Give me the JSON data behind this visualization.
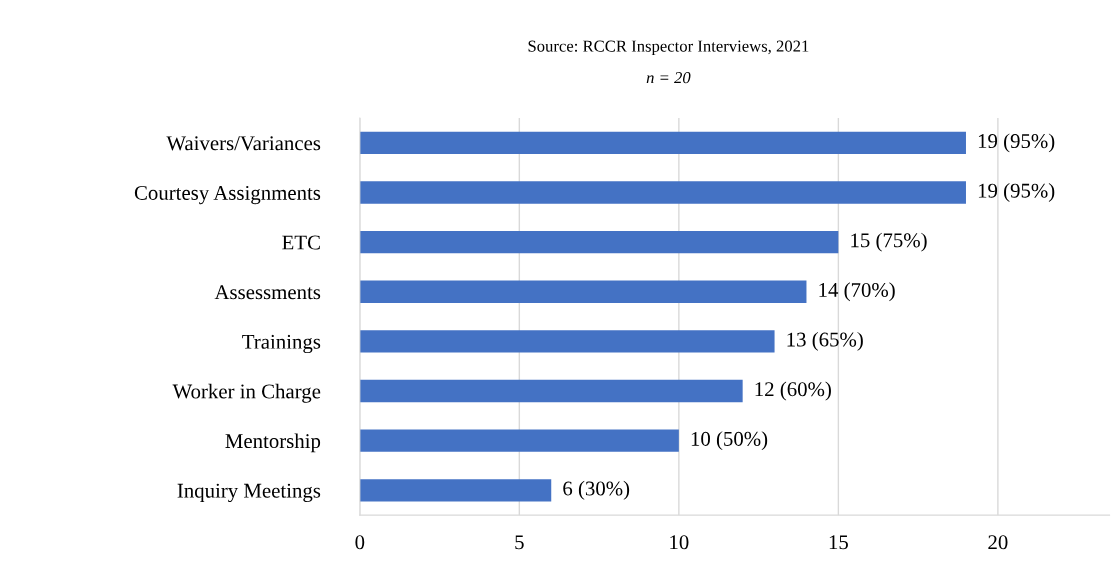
{
  "chart_data": {
    "type": "bar",
    "orientation": "horizontal",
    "title": "Source: RCCR Inspector Interviews, 2021",
    "subtitle": "n = 20",
    "categories": [
      "Waivers/Variances",
      "Courtesy Assignments",
      "ETC",
      "Assessments",
      "Trainings",
      "Worker in Charge",
      "Mentorship",
      "Inquiry Meetings"
    ],
    "values": [
      19,
      19,
      15,
      14,
      13,
      12,
      10,
      6
    ],
    "value_labels": [
      "19 (95%)",
      "19 (95%)",
      "15 (75%)",
      "14 (70%)",
      "13 (65%)",
      "12 (60%)",
      "10 (50%)",
      "6 (30%)"
    ],
    "color": "#4472c4",
    "xlim": [
      0,
      23.5
    ],
    "xticks": [
      0,
      5,
      10,
      15,
      20
    ],
    "grid": "x",
    "legend": false
  }
}
